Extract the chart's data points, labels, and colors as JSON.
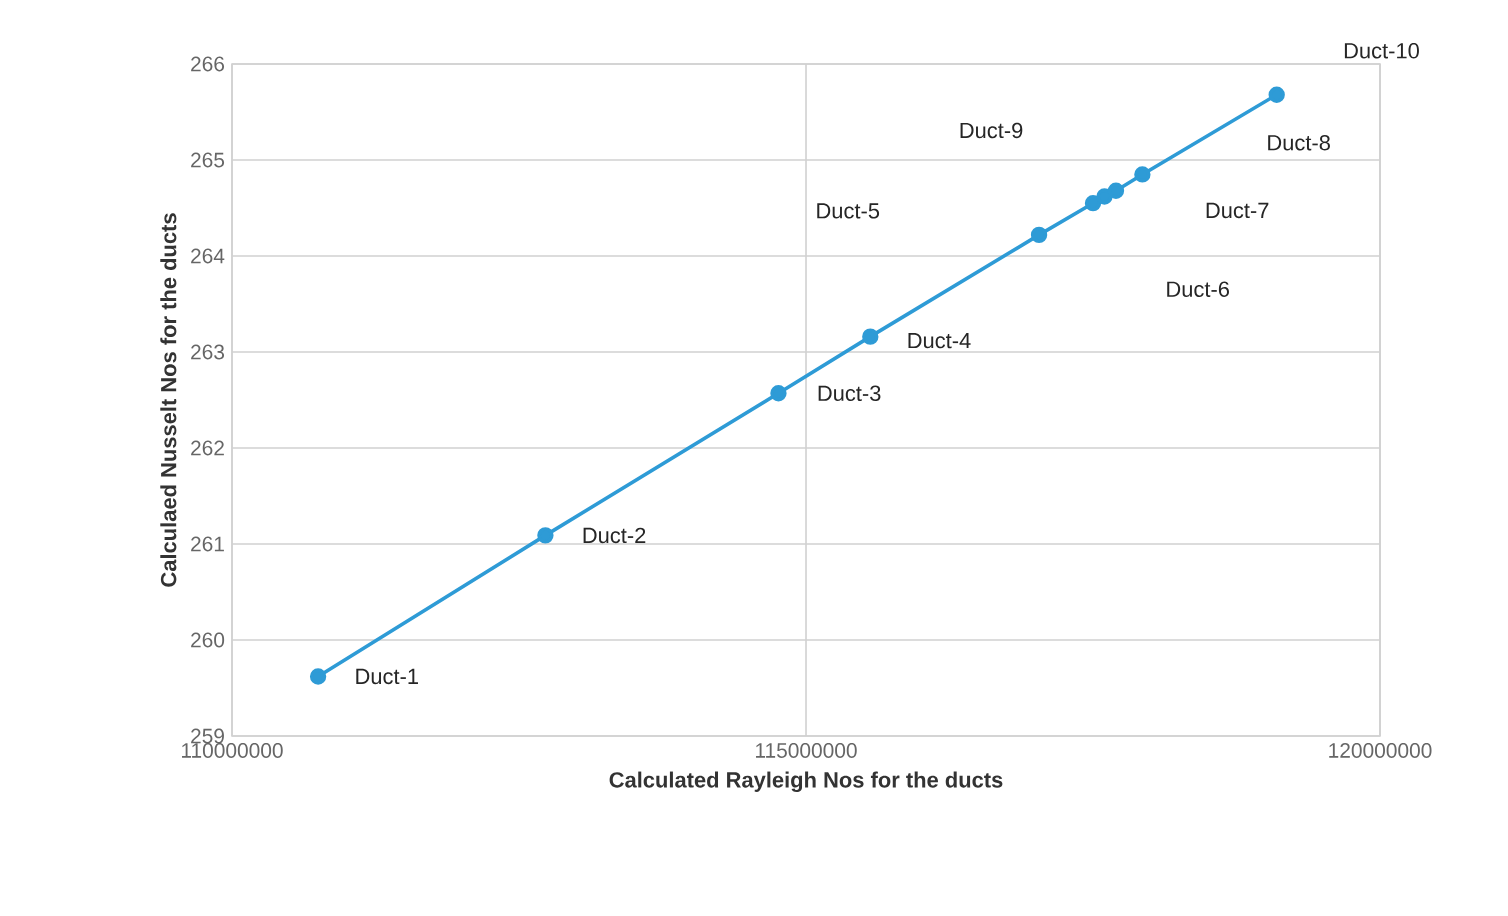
{
  "chart_data": {
    "type": "line",
    "xlabel": "Calculated Rayleigh Nos for the ducts",
    "ylabel": "Calculaed Nusselt Nos for the ducts",
    "series": [
      {
        "color": "#2e9bd6",
        "x": [
          110750000,
          112730000,
          114760000,
          115560000,
          117030000,
          117500000,
          117600000,
          117700000,
          117930000,
          119100000
        ],
        "values": [
          259.62,
          261.09,
          262.57,
          263.16,
          264.22,
          264.55,
          264.62,
          264.68,
          264.85,
          265.68
        ]
      }
    ],
    "xlim": [
      110000000,
      120000000
    ],
    "xticks": [
      110000000,
      115000000,
      120000000
    ],
    "ylim": [
      259,
      266
    ],
    "yticks": [
      259,
      260,
      261,
      262,
      263,
      264,
      265,
      266
    ],
    "grid": true,
    "marker": "circle",
    "line_style": "solid",
    "annotations": [
      "Duct-1",
      "Duct-2",
      "Duct-3",
      "Duct-4",
      "Duct-5",
      "Duct-6",
      "Duct-7",
      "Duct-8",
      "Duct-9",
      "Duct-10"
    ]
  }
}
